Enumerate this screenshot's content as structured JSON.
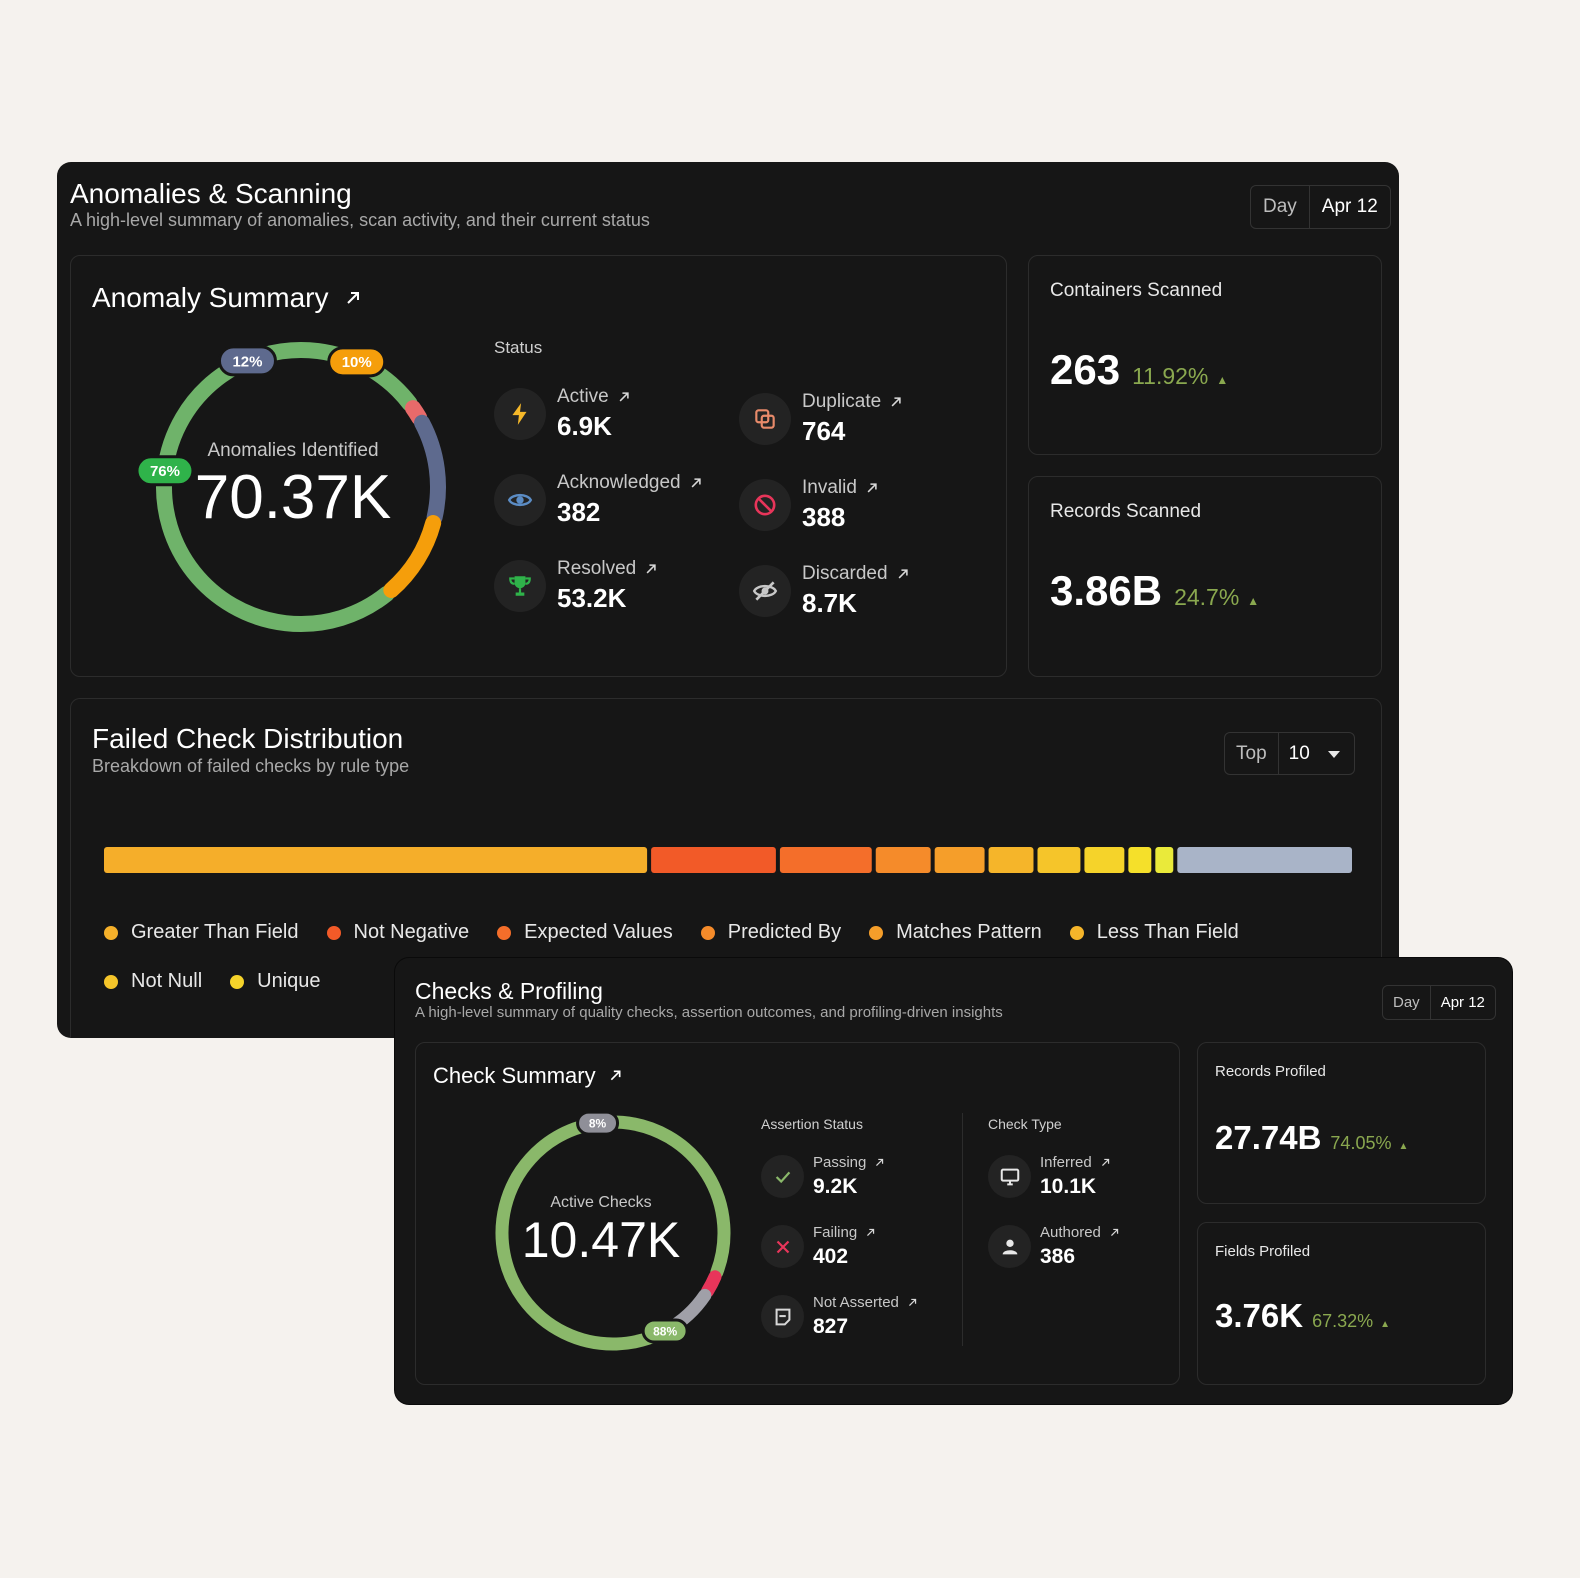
{
  "anomalies_panel": {
    "title": "Anomalies & Scanning",
    "subtitle": "A high-level summary of anomalies, scan activity, and their current status",
    "period": "Day",
    "date": "Apr 12",
    "summary": {
      "title": "Anomaly Summary",
      "donut_label": "Anomalies Identified",
      "donut_value": "70.37K",
      "segments": [
        {
          "label": "76%",
          "fraction": 0.76,
          "color": "#6fb36a"
        },
        {
          "label": "",
          "fraction": 0.02,
          "color": "#e86a6a"
        },
        {
          "label": "12%",
          "fraction": 0.12,
          "color": "#5e6a8e"
        },
        {
          "label": "10%",
          "fraction": 0.1,
          "color": "#f59e0b"
        }
      ],
      "status_heading": "Status",
      "statuses": [
        {
          "label": "Active",
          "value": "6.9K",
          "icon": "bolt-icon",
          "color": "#f5b829"
        },
        {
          "label": "Acknowledged",
          "value": "382",
          "icon": "eye-icon",
          "color": "#5b8cc4"
        },
        {
          "label": "Resolved",
          "value": "53.2K",
          "icon": "trophy-icon",
          "color": "#2fb34a"
        },
        {
          "label": "Duplicate",
          "value": "764",
          "icon": "copy-icon",
          "color": "#e88a6a"
        },
        {
          "label": "Invalid",
          "value": "388",
          "icon": "ban-icon",
          "color": "#e8355a"
        },
        {
          "label": "Discarded",
          "value": "8.7K",
          "icon": "eye-off-icon",
          "color": "#c8c8c8"
        }
      ]
    },
    "containers": {
      "title": "Containers Scanned",
      "value": "263",
      "change": "11.92%"
    },
    "records": {
      "title": "Records Scanned",
      "value": "3.86B",
      "change": "24.7%"
    },
    "failed": {
      "title": "Failed Check Distribution",
      "subtitle": "Breakdown of failed checks by rule type",
      "top_label": "Top",
      "top_value": "10",
      "legend": [
        {
          "label": "Greater Than Field",
          "color": "#f5b02a"
        },
        {
          "label": "Not Negative",
          "color": "#f25a28"
        },
        {
          "label": "Expected Values",
          "color": "#f46e2a"
        },
        {
          "label": "Predicted By",
          "color": "#f58b2a"
        },
        {
          "label": "Matches Pattern",
          "color": "#f59e2a"
        },
        {
          "label": "Less Than Field",
          "color": "#f5b52a"
        },
        {
          "label": "Not Null",
          "color": "#f5c52a"
        },
        {
          "label": "Unique",
          "color": "#f5d32a"
        }
      ]
    }
  },
  "chart_data": {
    "type": "bar",
    "categories": [
      "Greater Than Field",
      "Not Negative",
      "Expected Values",
      "Predicted By",
      "Matches Pattern",
      "Less Than Field",
      "Not Null",
      "Unique",
      "",
      "",
      ""
    ],
    "values": [
      544,
      125,
      92,
      55,
      50,
      45,
      43,
      40,
      23,
      18,
      175
    ],
    "colors": [
      "#f5ae2a",
      "#f25a28",
      "#f46e2a",
      "#f58b2a",
      "#f59e2a",
      "#f5b52a",
      "#f5c52a",
      "#f5d32a",
      "#f5e02a",
      "#eaea3a",
      "#a9b4c8"
    ]
  },
  "checks_panel": {
    "title": "Checks & Profiling",
    "subtitle": "A high-level summary of quality checks, assertion outcomes, and profiling-driven insights",
    "period": "Day",
    "date": "Apr 12",
    "summary": {
      "title": "Check Summary",
      "donut_label": "Active Checks",
      "donut_value": "10.47K",
      "segments": [
        {
          "label": "88%",
          "fraction": 0.88,
          "color": "#8ab86a"
        },
        {
          "label": "",
          "fraction": 0.03,
          "color": "#e8355a"
        },
        {
          "label": "8%",
          "fraction": 0.08,
          "color": "#a0a0a8"
        }
      ],
      "assertion_heading": "Assertion Status",
      "type_heading": "Check Type",
      "assertions": [
        {
          "label": "Passing",
          "value": "9.2K",
          "icon": "check-icon",
          "color": "#8ab86a"
        },
        {
          "label": "Failing",
          "value": "402",
          "icon": "x-icon",
          "color": "#e8355a"
        },
        {
          "label": "Not Asserted",
          "value": "827",
          "icon": "note-icon",
          "color": "#d8d8d8"
        }
      ],
      "types": [
        {
          "label": "Inferred",
          "value": "10.1K",
          "icon": "monitor-icon",
          "color": "#e8e8e8"
        },
        {
          "label": "Authored",
          "value": "386",
          "icon": "user-icon",
          "color": "#e8e8e8"
        }
      ]
    },
    "records_profiled": {
      "title": "Records Profiled",
      "value": "27.74B",
      "change": "74.05%"
    },
    "fields_profiled": {
      "title": "Fields Profiled",
      "value": "3.76K",
      "change": "67.32%"
    }
  }
}
